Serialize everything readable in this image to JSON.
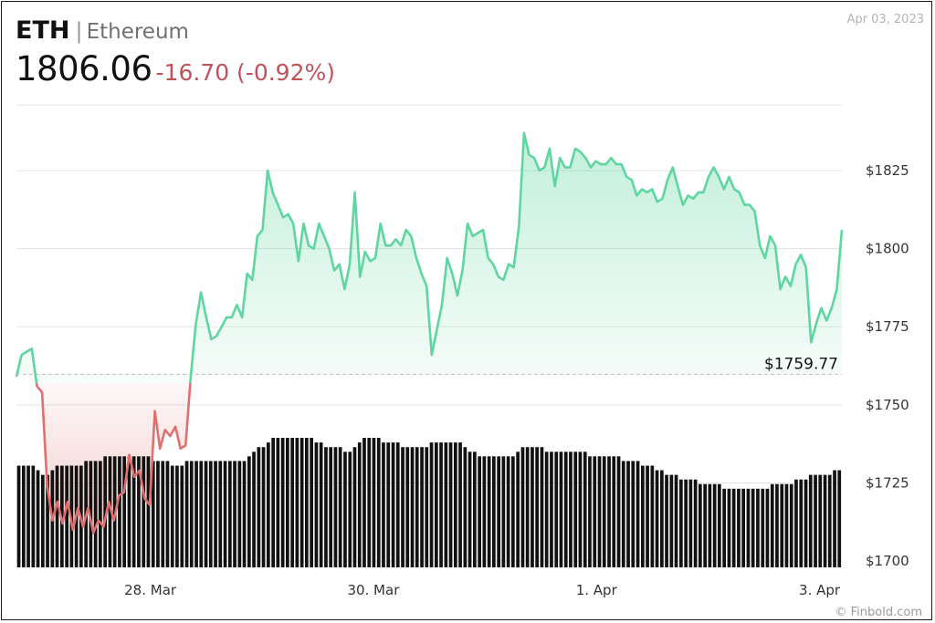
{
  "header": {
    "symbol": "ETH",
    "separator": "|",
    "name": "Ethereum",
    "price": "1806.06",
    "change": "-16.70 (-0.92%)",
    "date": "Apr 03, 2023",
    "watermark": "© Finbold.com"
  },
  "colors": {
    "up_line": "#5fd6a0",
    "down_line": "#e0706f",
    "volume": "#111111",
    "grid": "#e3e3e3",
    "prev_close_line": "#bdbdbd"
  },
  "chart_data": {
    "type": "line",
    "title": "",
    "xlabel": "",
    "ylabel": "",
    "ylim": [
      1698,
      1846
    ],
    "x_range": [
      0.0,
      7.4
    ],
    "y_ticks": [
      1700,
      1725,
      1750,
      1775,
      1800,
      1825
    ],
    "y_tick_labels": [
      "$1700",
      "$1725",
      "$1750",
      "$1775",
      "$1800",
      "$1825"
    ],
    "x_ticks": [
      1.2,
      3.2,
      5.2,
      7.2
    ],
    "x_tick_labels": [
      "28. Mar",
      "30. Mar",
      "1. Apr",
      "3. Apr"
    ],
    "grid": true,
    "legend": "none",
    "reference_line": {
      "value": 1759.77,
      "label": "$1759.77"
    },
    "series": [
      {
        "values": [
          1759,
          1766,
          1767,
          1768,
          1756,
          1754,
          1724,
          1713,
          1719,
          1712,
          1719,
          1710,
          1717,
          1711,
          1717,
          1709,
          1713,
          1711,
          1719,
          1713,
          1721,
          1722,
          1734,
          1727,
          1729,
          1720,
          1718,
          1748,
          1736,
          1742,
          1740,
          1743,
          1736,
          1737,
          1759,
          1776,
          1786,
          1778,
          1771,
          1772,
          1775,
          1778,
          1778,
          1782,
          1778,
          1792,
          1790,
          1804,
          1806,
          1825,
          1818,
          1814,
          1810,
          1811,
          1808,
          1796,
          1808,
          1801,
          1800,
          1808,
          1804,
          1800,
          1793,
          1795,
          1787,
          1795,
          1818,
          1791,
          1799,
          1796,
          1797,
          1808,
          1801,
          1801,
          1803,
          1801,
          1806,
          1804,
          1797,
          1792,
          1788,
          1766,
          1774,
          1782,
          1797,
          1792,
          1785,
          1793,
          1808,
          1804,
          1805,
          1806,
          1797,
          1795,
          1791,
          1790,
          1795,
          1794,
          1807,
          1837,
          1830,
          1829,
          1825,
          1826,
          1832,
          1820,
          1829,
          1826,
          1826,
          1832,
          1831,
          1829,
          1826,
          1828,
          1827,
          1827,
          1829,
          1827,
          1827,
          1823,
          1822,
          1817,
          1819,
          1818,
          1819,
          1815,
          1816,
          1822,
          1826,
          1820,
          1814,
          1817,
          1816,
          1818,
          1818,
          1823,
          1826,
          1823,
          1819,
          1823,
          1819,
          1818,
          1814,
          1814,
          1812,
          1801,
          1797,
          1804,
          1801,
          1787,
          1791,
          1788,
          1795,
          1798,
          1794,
          1770,
          1776,
          1781,
          1777,
          1781,
          1787,
          1806
        ]
      }
    ],
    "volume": [
      22,
      22,
      22,
      22,
      21,
      20,
      20,
      21,
      22,
      22,
      22,
      22,
      22,
      22,
      23,
      23,
      23,
      23,
      24,
      24,
      24,
      24,
      24,
      24,
      24,
      24,
      24,
      24,
      23,
      23,
      23,
      23,
      22,
      22,
      22,
      23,
      23,
      23,
      23,
      23,
      23,
      23,
      23,
      23,
      23,
      23,
      23,
      23,
      24,
      25,
      26,
      26,
      27,
      28,
      28,
      28,
      28,
      28,
      28,
      28,
      28,
      28,
      27,
      27,
      26,
      26,
      26,
      26,
      25,
      25,
      26,
      27,
      28,
      28,
      28,
      28,
      27,
      27,
      27,
      27,
      26,
      26,
      26,
      26,
      26,
      26,
      27,
      27,
      27,
      27,
      27,
      27,
      27,
      26,
      25,
      25,
      24,
      24,
      24,
      24,
      24,
      24,
      24,
      24,
      25,
      26,
      26,
      26,
      26,
      26,
      25,
      25,
      25,
      25,
      25,
      25,
      25,
      25,
      25,
      24,
      24,
      24,
      24,
      24,
      24,
      24,
      23,
      23,
      23,
      23,
      22,
      22,
      22,
      21,
      21,
      20,
      20,
      20,
      19,
      19,
      19,
      19,
      18,
      18,
      18,
      18,
      18,
      17,
      17,
      17,
      17,
      17,
      17,
      17,
      17,
      17,
      17,
      18,
      18,
      18,
      18,
      18,
      19,
      19,
      19,
      20,
      20,
      20,
      20,
      20,
      21,
      21
    ]
  }
}
